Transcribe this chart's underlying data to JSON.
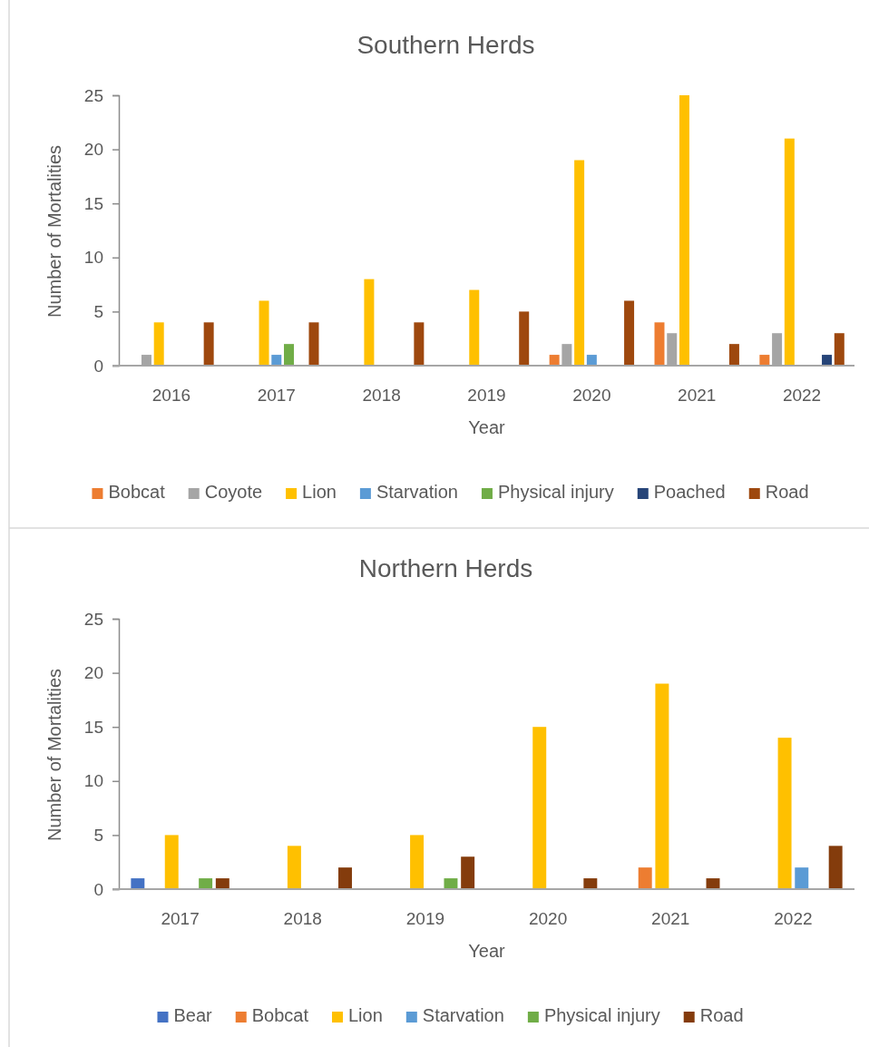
{
  "chart_data": [
    {
      "type": "bar",
      "title": "Southern Herds",
      "xlabel": "Year",
      "ylabel": "Number of Mortalities",
      "categories": [
        "2016",
        "2017",
        "2018",
        "2019",
        "2020",
        "2021",
        "2022"
      ],
      "series": [
        {
          "name": "Bobcat",
          "color": "#ed7d31",
          "values": [
            null,
            null,
            null,
            null,
            1,
            4,
            1
          ]
        },
        {
          "name": "Coyote",
          "color": "#a5a5a5",
          "values": [
            1,
            null,
            null,
            null,
            2,
            3,
            3
          ]
        },
        {
          "name": "Lion",
          "color": "#ffc000",
          "values": [
            4,
            6,
            8,
            7,
            19,
            25,
            21
          ]
        },
        {
          "name": "Starvation",
          "color": "#5b9bd5",
          "values": [
            null,
            1,
            null,
            null,
            1,
            null,
            null
          ]
        },
        {
          "name": "Physical injury",
          "color": "#70ad47",
          "values": [
            null,
            2,
            null,
            null,
            null,
            null,
            null
          ]
        },
        {
          "name": "Poached",
          "color": "#264478",
          "values": [
            null,
            null,
            null,
            null,
            null,
            null,
            1
          ]
        },
        {
          "name": "Road",
          "color": "#9e480e",
          "values": [
            4,
            4,
            4,
            5,
            6,
            2,
            3
          ]
        }
      ],
      "ylim": [
        0,
        25
      ],
      "yticks": [
        0,
        5,
        10,
        15,
        20,
        25
      ],
      "legend": "bottom"
    },
    {
      "type": "bar",
      "title": "Northern Herds",
      "xlabel": "Year",
      "ylabel": "Number of Mortalities",
      "categories": [
        "2017",
        "2018",
        "2019",
        "2020",
        "2021",
        "2022"
      ],
      "series": [
        {
          "name": "Bear",
          "color": "#4472c4",
          "values": [
            1,
            null,
            null,
            null,
            null,
            null
          ]
        },
        {
          "name": "Bobcat",
          "color": "#ed7d31",
          "values": [
            null,
            null,
            null,
            null,
            2,
            null
          ]
        },
        {
          "name": "Lion",
          "color": "#ffc000",
          "values": [
            5,
            4,
            5,
            15,
            19,
            14
          ]
        },
        {
          "name": "Starvation",
          "color": "#5b9bd5",
          "values": [
            null,
            null,
            null,
            null,
            null,
            2
          ]
        },
        {
          "name": "Physical injury",
          "color": "#70ad47",
          "values": [
            1,
            null,
            1,
            null,
            null,
            null
          ]
        },
        {
          "name": "Road",
          "color": "#843c0c",
          "values": [
            1,
            2,
            3,
            1,
            1,
            4
          ]
        }
      ],
      "ylim": [
        0,
        25
      ],
      "yticks": [
        0,
        5,
        10,
        15,
        20,
        25
      ],
      "legend": "bottom"
    }
  ]
}
